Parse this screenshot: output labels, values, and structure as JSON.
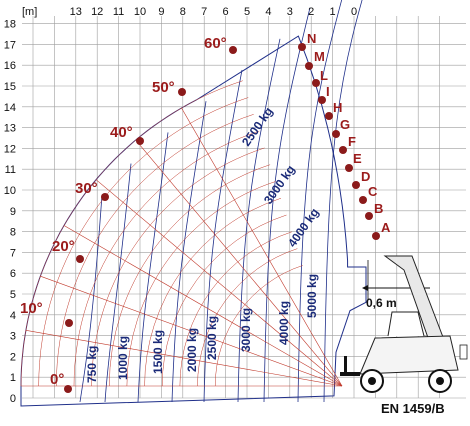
{
  "chart_data": {
    "type": "load_chart",
    "x_axis_unit": "[m]",
    "x_ticks": [
      "13",
      "12",
      "11",
      "10",
      "9",
      "8",
      "7",
      "6",
      "5",
      "4",
      "3",
      "2",
      "1",
      "0"
    ],
    "y_ticks": [
      "0",
      "1",
      "2",
      "3",
      "4",
      "5",
      "6",
      "7",
      "8",
      "9",
      "10",
      "11",
      "12",
      "13",
      "14",
      "15",
      "16",
      "17",
      "18"
    ],
    "boom_angles": [
      "0°",
      "10°",
      "20°",
      "30°",
      "40°",
      "50°",
      "60°"
    ],
    "extension_letters": [
      "A",
      "B",
      "C",
      "D",
      "E",
      "F",
      "G",
      "H",
      "I",
      "L",
      "M",
      "N"
    ],
    "bottom_load_zones": [
      "750 kg",
      "1000 kg",
      "1500 kg",
      "2000 kg",
      "2500 kg",
      "3000 kg",
      "4000 kg",
      "5000 kg"
    ],
    "diagonal_load_zones": [
      "2500 kg",
      "3000 kg",
      "4000 kg"
    ],
    "dimension_label": "0,6 m",
    "standard_label": "EN 1459/B",
    "colors": {
      "envelope": "#1f2f8a",
      "radial": "#c0392b",
      "markers": "#8b1a1a",
      "grid": "#9e9e9e"
    }
  }
}
